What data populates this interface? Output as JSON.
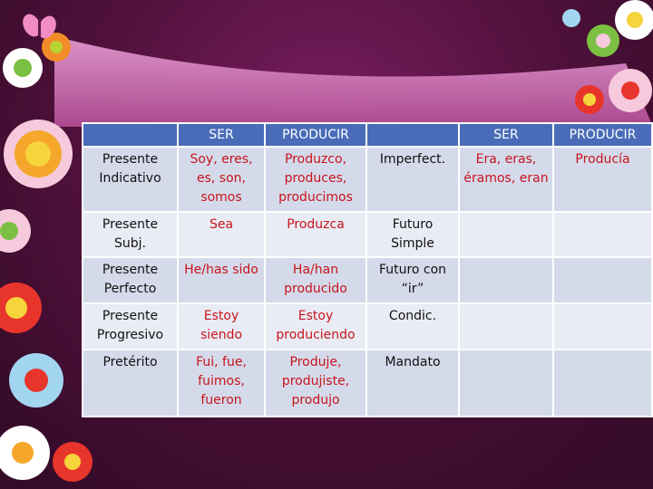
{
  "table": {
    "headers": [
      "",
      "SER",
      "PRODUCIR",
      "",
      "SER",
      "PRODUCIR"
    ],
    "rows": [
      [
        "Presente Indicativo",
        "Soy, eres, es, son, somos",
        "Produzco, produces, producimos",
        "Imperfect.",
        "Era, eras, éramos, eran",
        "Producía"
      ],
      [
        "Presente Subj.",
        "Sea",
        "Produzca",
        "Futuro Simple",
        "",
        ""
      ],
      [
        "Presente Perfecto",
        "He/has sido",
        "Ha/han producido",
        "Futuro con “ir”",
        "",
        ""
      ],
      [
        "Presente Progresivo",
        "Estoy siendo",
        "Estoy produciendo",
        "Condic.",
        "",
        ""
      ],
      [
        "Pretérito",
        "Fui, fue, fuimos, fueron",
        "Produje, produjiste, produjo",
        "Mandato",
        "",
        ""
      ]
    ]
  },
  "colors": {
    "header_bg": "#4a6cb8",
    "row_bg_odd": "#d4dae9",
    "row_bg_even": "#e9ecf4",
    "value_text": "#c8141e",
    "background": "#55123f"
  }
}
